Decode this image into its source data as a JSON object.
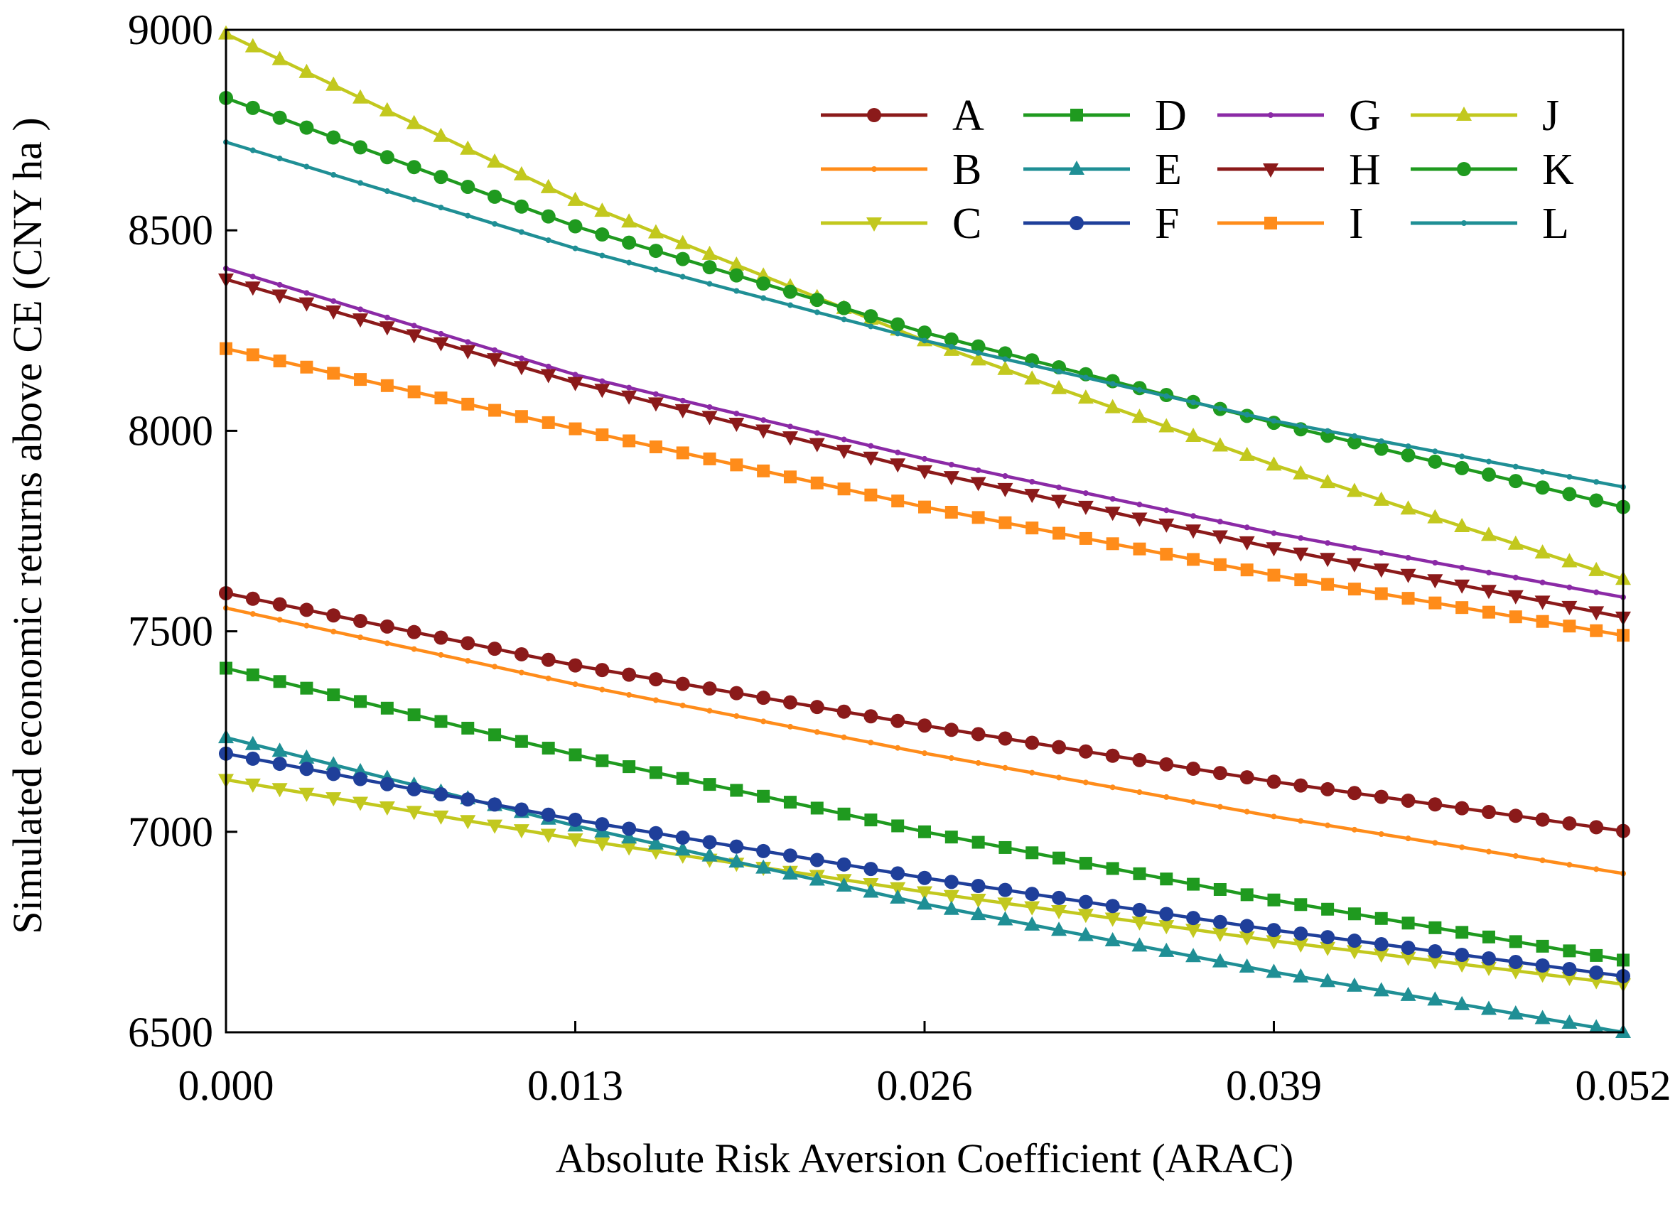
{
  "chart_data": {
    "type": "line",
    "title": "",
    "xlabel": "Absolute Risk Aversion Coefficient (ARAC)",
    "ylabel": "Simulated economic returns  above CE (CNY ha  )",
    "xlim": [
      0.0,
      0.052
    ],
    "ylim": [
      6500,
      9000
    ],
    "xticks": [
      "0.000",
      "0.013",
      "0.026",
      "0.039",
      "0.052"
    ],
    "yticks": [
      "6500",
      "7000",
      "7500",
      "8000",
      "8500",
      "9000"
    ],
    "grid": false,
    "legend_position": "top-right",
    "x": [
      0.0,
      0.013,
      0.026,
      0.039,
      0.052
    ],
    "series": [
      {
        "name": "A",
        "color": "#8b1a1a",
        "marker": "circle",
        "values": [
          7595,
          7415,
          7265,
          7125,
          7002
        ]
      },
      {
        "name": "B",
        "color": "#ff8c1a",
        "marker": "dot",
        "values": [
          7558,
          7368,
          7196,
          7038,
          6896
        ]
      },
      {
        "name": "C",
        "color": "#c2c81e",
        "marker": "triangle-down",
        "values": [
          7130,
          6982,
          6850,
          6728,
          6620
        ]
      },
      {
        "name": "D",
        "color": "#1f9a1f",
        "marker": "square",
        "values": [
          7408,
          7192,
          7000,
          6830,
          6680
        ]
      },
      {
        "name": "E",
        "color": "#1f8f95",
        "marker": "triangle-up",
        "values": [
          7235,
          7015,
          6820,
          6650,
          6500
        ]
      },
      {
        "name": "F",
        "color": "#1f3f9a",
        "marker": "circle",
        "values": [
          7195,
          7030,
          6885,
          6755,
          6640
        ]
      },
      {
        "name": "G",
        "color": "#8b2aa6",
        "marker": "dot",
        "values": [
          8405,
          8140,
          7930,
          7745,
          7585
        ]
      },
      {
        "name": "H",
        "color": "#8b1a1a",
        "marker": "triangle-down",
        "values": [
          8378,
          8120,
          7900,
          7708,
          7535
        ]
      },
      {
        "name": "I",
        "color": "#ff8c1a",
        "marker": "square",
        "values": [
          8205,
          8005,
          7810,
          7640,
          7490
        ]
      },
      {
        "name": "J",
        "color": "#c2c81e",
        "marker": "triangle-up",
        "values": [
          8990,
          8575,
          8225,
          7915,
          7630
        ]
      },
      {
        "name": "K",
        "color": "#1f9a1f",
        "marker": "circle",
        "values": [
          8830,
          8510,
          8245,
          8020,
          7810
        ]
      },
      {
        "name": "L",
        "color": "#1f8f95",
        "marker": "dot",
        "values": [
          8720,
          8455,
          8225,
          8025,
          7860
        ]
      }
    ]
  }
}
